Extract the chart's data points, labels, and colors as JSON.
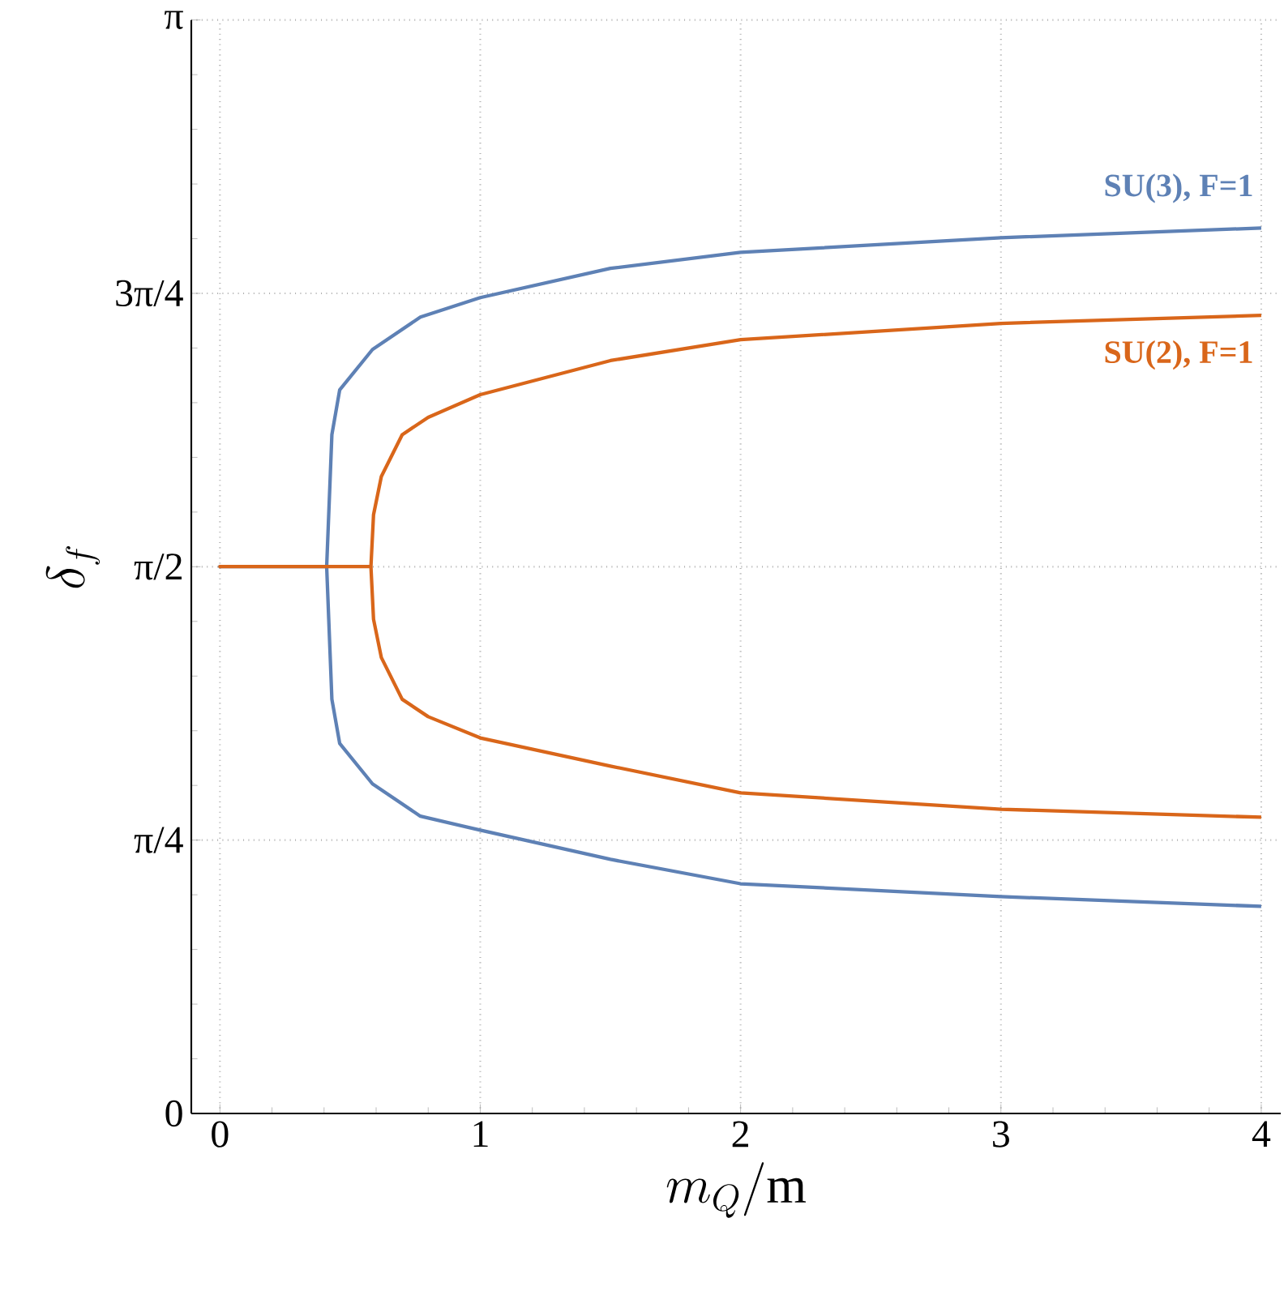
{
  "chart_data": {
    "type": "line",
    "xlabel": "m_Q/\\mathrm{m}",
    "ylabel": "\\delta_f",
    "xlim": [
      -0.11,
      4.075
    ],
    "ylim": [
      0,
      3.1416
    ],
    "xticks": [
      0,
      1,
      2,
      3,
      4
    ],
    "yticks": [
      {
        "value": 0,
        "label": "0"
      },
      {
        "value": 0.7854,
        "label": "π/4"
      },
      {
        "value": 1.5708,
        "label": "π/2"
      },
      {
        "value": 2.3562,
        "label": "3π/4"
      },
      {
        "value": 3.1416,
        "label": "π"
      }
    ],
    "grid": true,
    "line_style": "solid",
    "series": [
      {
        "name": "SU(3), F=1",
        "color": "#5e81b5",
        "x": [
          4,
          3,
          2,
          1.5,
          1,
          0.77,
          0.586,
          0.46,
          0.43,
          0.41,
          0,
          0.41,
          0.43,
          0.46,
          0.586,
          0.77,
          1,
          1.5,
          2,
          3,
          4
        ],
        "values": [
          2.544,
          2.516,
          2.474,
          2.428,
          2.344,
          2.288,
          2.195,
          2.079,
          1.95,
          1.571,
          1.571,
          1.571,
          1.19,
          1.063,
          0.947,
          0.854,
          0.814,
          0.73,
          0.66,
          0.623,
          0.595
        ]
      },
      {
        "name": "SU(2), F=1",
        "color": "#d9661a",
        "x": [
          4,
          3,
          2,
          1.5,
          1,
          0.8,
          0.7,
          0.62,
          0.59,
          0.58,
          0,
          0.58,
          0.59,
          0.62,
          0.7,
          0.8,
          1,
          1.5,
          2,
          3,
          4
        ],
        "values": [
          2.293,
          2.27,
          2.223,
          2.163,
          2.065,
          2.0,
          1.95,
          1.83,
          1.72,
          1.571,
          1.571,
          1.571,
          1.42,
          1.31,
          1.19,
          1.14,
          1.079,
          0.998,
          0.921,
          0.874,
          0.851
        ]
      }
    ]
  }
}
